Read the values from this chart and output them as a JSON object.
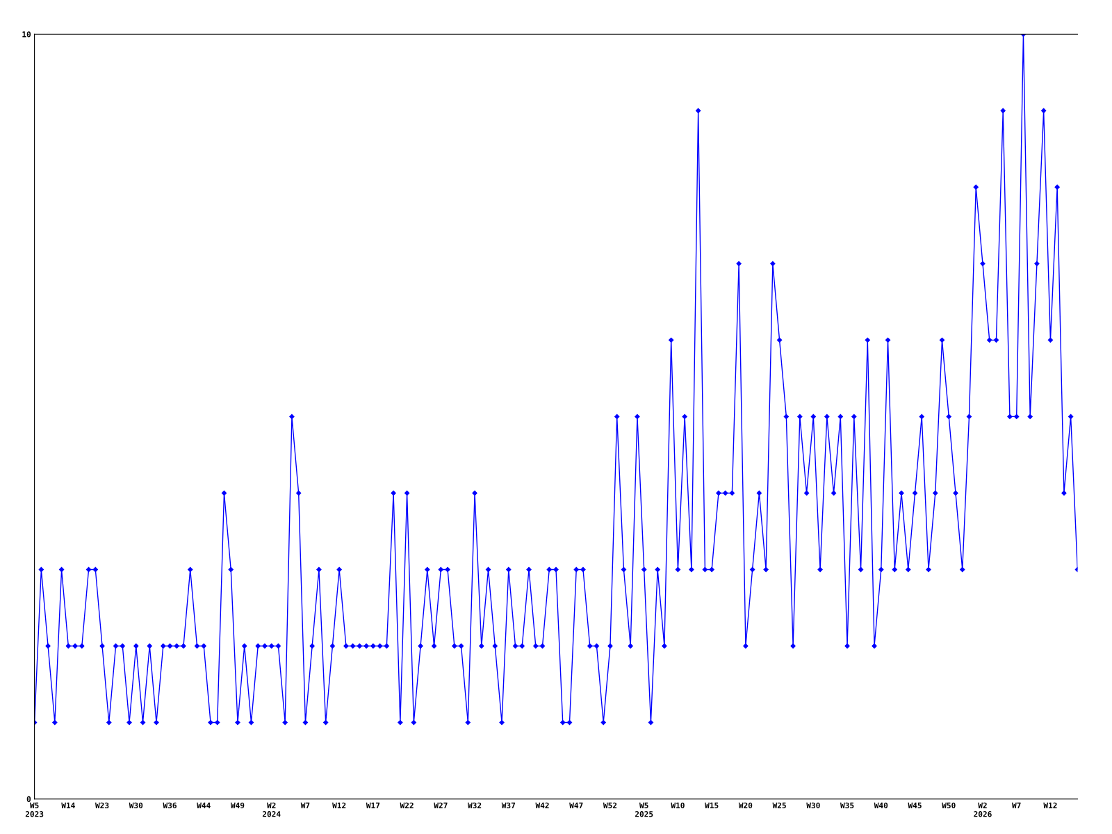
{
  "chart_data": {
    "type": "line",
    "categories": [
      "W5\n2023",
      null,
      null,
      null,
      null,
      "W14",
      null,
      null,
      null,
      null,
      "W23",
      null,
      null,
      null,
      null,
      "W30",
      null,
      null,
      null,
      null,
      "W36",
      null,
      null,
      null,
      null,
      "W44",
      null,
      null,
      null,
      null,
      "W49",
      null,
      null,
      null,
      null,
      "W2\n2024",
      null,
      null,
      null,
      null,
      "W7",
      null,
      null,
      null,
      null,
      "W12",
      null,
      null,
      null,
      null,
      "W17",
      null,
      null,
      null,
      null,
      "W22",
      null,
      null,
      null,
      null,
      "W27",
      null,
      null,
      null,
      null,
      "W32",
      null,
      null,
      null,
      null,
      "W37",
      null,
      null,
      null,
      null,
      "W42",
      null,
      null,
      null,
      null,
      "W47",
      null,
      null,
      null,
      null,
      "W52",
      null,
      null,
      null,
      null,
      "W5\n2025",
      null,
      null,
      null,
      null,
      "W10",
      null,
      null,
      null,
      null,
      "W15",
      null,
      null,
      null,
      null,
      "W20",
      null,
      null,
      null,
      null,
      "W25",
      null,
      null,
      null,
      null,
      "W30",
      null,
      null,
      null,
      null,
      "W35",
      null,
      null,
      null,
      null,
      "W40",
      null,
      null,
      null,
      null,
      "W45",
      null,
      null,
      null,
      null,
      "W50",
      null,
      null,
      null,
      null,
      "W2\n2026",
      null,
      null,
      null,
      null,
      "W7",
      null,
      null,
      null,
      null,
      "W12",
      null,
      null,
      null,
      null
    ],
    "series": [
      {
        "color": "#0000ff",
        "values": [
          1,
          3,
          2,
          1,
          3,
          2,
          2,
          2,
          3,
          3,
          2,
          1,
          2,
          2,
          1,
          2,
          1,
          2,
          1,
          2,
          2,
          2,
          2,
          3,
          2,
          2,
          1,
          1,
          4,
          3,
          1,
          2,
          1,
          2,
          2,
          2,
          2,
          1,
          5,
          4,
          1,
          2,
          3,
          1,
          2,
          3,
          2,
          2,
          2,
          2,
          2,
          2,
          2,
          4,
          1,
          4,
          1,
          2,
          3,
          2,
          3,
          3,
          2,
          2,
          1,
          4,
          2,
          3,
          2,
          1,
          3,
          2,
          2,
          3,
          2,
          2,
          3,
          3,
          1,
          1,
          3,
          3,
          2,
          2,
          1,
          2,
          5,
          3,
          2,
          5,
          3,
          1,
          3,
          2,
          6,
          3,
          5,
          3,
          9,
          3,
          3,
          4,
          4,
          4,
          7,
          2,
          3,
          4,
          3,
          7,
          6,
          5,
          2,
          5,
          4,
          5,
          3,
          5,
          4,
          5,
          2,
          5,
          3,
          6,
          2,
          3,
          6,
          3,
          4,
          3,
          4,
          5,
          3,
          4,
          6,
          5,
          4,
          3,
          5,
          8,
          7,
          6,
          6,
          9,
          5,
          5,
          10,
          5,
          7,
          9,
          6,
          8,
          4,
          5,
          3
        ]
      }
    ],
    "ylim": [
      0,
      10
    ],
    "yticks": [
      0,
      10
    ],
    "grid": false,
    "legend": false,
    "marker": "diamond",
    "line_style": "solid"
  }
}
